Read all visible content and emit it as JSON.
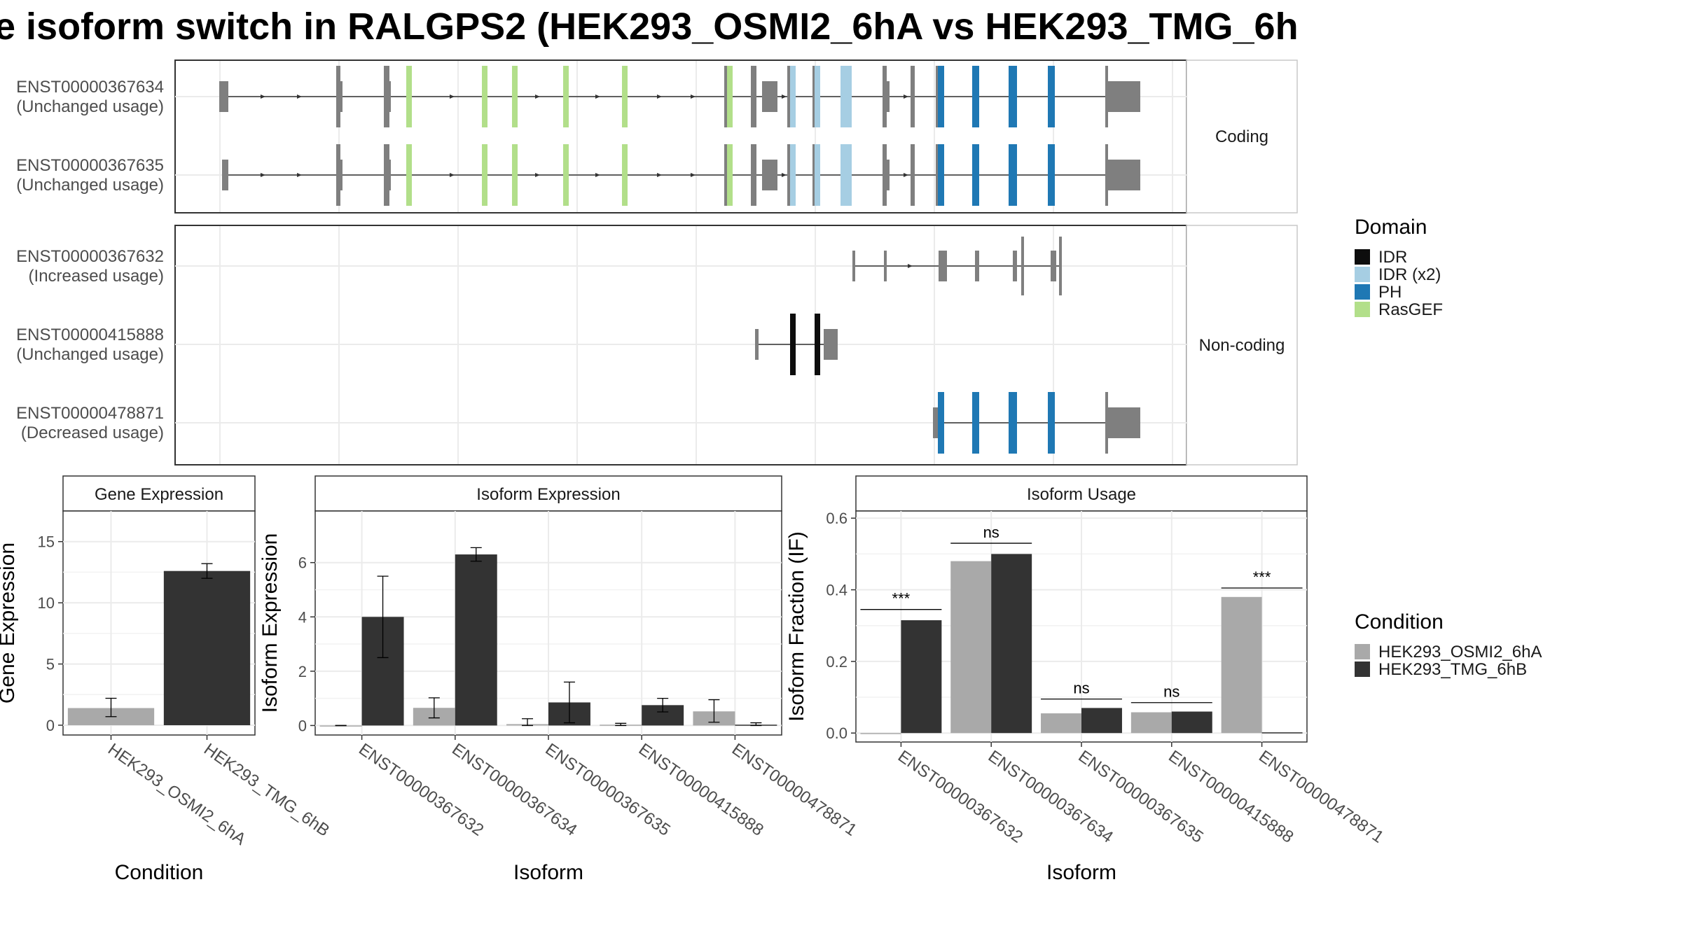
{
  "title": "e isoform switch in RALGPS2 (HEK293_OSMI2_6hA vs HEK293_TMG_6h",
  "colors": {
    "IDR": "#0d0d0d",
    "IDR (x2)": "#a6cee3",
    "PH": "#1f78b4",
    "RasGEF": "#b2df8a",
    "exon": "#7f7f7f",
    "HEK293_OSMI2_6hA": "#a9a9a9",
    "HEK293_TMG_6hB": "#333333"
  },
  "chart_data": [
    {
      "type": "transcript-structure",
      "facets": [
        "Coding",
        "Non-coding"
      ],
      "legend": {
        "title": "Domain",
        "entries": [
          "IDR",
          "IDR (x2)",
          "PH",
          "RasGEF"
        ]
      },
      "transcripts": [
        {
          "id": "ENST00000367634",
          "usage": "(Unchanged usage)",
          "facet": "Coding"
        },
        {
          "id": "ENST00000367635",
          "usage": "(Unchanged usage)",
          "facet": "Coding"
        },
        {
          "id": "ENST00000367632",
          "usage": "(Increased usage)",
          "facet": "Non-coding"
        },
        {
          "id": "ENST00000415888",
          "usage": "(Unchanged usage)",
          "facet": "Non-coding"
        },
        {
          "id": "ENST00000478871",
          "usage": "(Decreased usage)",
          "facet": "Non-coding"
        }
      ]
    },
    {
      "type": "bar",
      "title": "Gene Expression",
      "xlabel": "Condition",
      "ylabel": "Gene Expression",
      "ylim": [
        -0.8,
        17.5
      ],
      "yticks": [
        0,
        5,
        10,
        15
      ],
      "categories": [
        "HEK293_OSMI2_6hA",
        "HEK293_TMG_6hB"
      ],
      "values": [
        1.4,
        12.6
      ],
      "errors": [
        [
          0.7,
          2.2
        ],
        [
          12.0,
          13.2
        ]
      ]
    },
    {
      "type": "bar",
      "title": "Isoform Expression",
      "xlabel": "Isoform",
      "ylabel": "Isoform Expression",
      "ylim": [
        -0.35,
        7.9
      ],
      "yticks": [
        0,
        2,
        4,
        6
      ],
      "categories": [
        "ENST00000367632",
        "ENST00000367634",
        "ENST00000367635",
        "ENST00000415888",
        "ENST00000478871"
      ],
      "series": [
        {
          "name": "HEK293_OSMI2_6hA",
          "values": [
            0.0,
            0.65,
            0.05,
            0.03,
            0.52
          ],
          "errors": [
            [
              0.0,
              0.0
            ],
            [
              0.28,
              1.02
            ],
            [
              0.0,
              0.25
            ],
            [
              0.0,
              0.08
            ],
            [
              0.12,
              0.95
            ]
          ]
        },
        {
          "name": "HEK293_TMG_6hB",
          "values": [
            4.0,
            6.3,
            0.85,
            0.75,
            0.03
          ],
          "errors": [
            [
              2.5,
              5.5
            ],
            [
              6.05,
              6.55
            ],
            [
              0.1,
              1.6
            ],
            [
              0.5,
              1.0
            ],
            [
              0.0,
              0.1
            ]
          ]
        }
      ]
    },
    {
      "type": "bar",
      "title": "Isoform Usage",
      "xlabel": "Isoform",
      "ylabel": "Isoform Fraction (IF)",
      "ylim": [
        -0.025,
        0.62
      ],
      "yticks": [
        0.0,
        0.2,
        0.4,
        0.6
      ],
      "ytick_labels": [
        "0.0",
        "0.2",
        "0.4",
        "0.6"
      ],
      "categories": [
        "ENST00000367632",
        "ENST00000367634",
        "ENST00000367635",
        "ENST00000415888",
        "ENST00000478871"
      ],
      "series": [
        {
          "name": "HEK293_OSMI2_6hA",
          "values": [
            0.0,
            0.48,
            0.055,
            0.058,
            0.38
          ]
        },
        {
          "name": "HEK293_TMG_6hB",
          "values": [
            0.315,
            0.5,
            0.07,
            0.06,
            0.002
          ]
        }
      ],
      "significance": [
        {
          "category": "ENST00000367632",
          "label": "***",
          "y": 0.345
        },
        {
          "category": "ENST00000367634",
          "label": "ns",
          "y": 0.53
        },
        {
          "category": "ENST00000367635",
          "label": "ns",
          "y": 0.095
        },
        {
          "category": "ENST00000415888",
          "label": "ns",
          "y": 0.085
        },
        {
          "category": "ENST00000478871",
          "label": "***",
          "y": 0.405
        }
      ]
    }
  ],
  "condition_legend": {
    "title": "Condition",
    "entries": [
      "HEK293_OSMI2_6hA",
      "HEK293_TMG_6hB"
    ]
  }
}
